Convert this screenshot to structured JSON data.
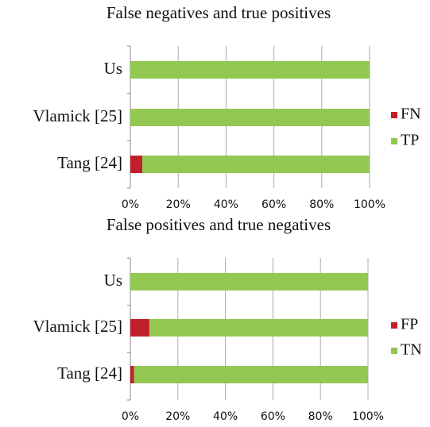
{
  "chart_data": [
    {
      "type": "bar",
      "orientation": "horizontal",
      "stacked": true,
      "grid": true,
      "legend": "right",
      "title": "False negatives and true positives",
      "categories": [
        "Us",
        "Vlamick [25]",
        "Tang [24]"
      ],
      "series": [
        {
          "name": "FN",
          "color": "#c0202a",
          "values": [
            0,
            0,
            5
          ]
        },
        {
          "name": "TP",
          "color": "#92c852",
          "values": [
            100,
            100,
            95
          ]
        }
      ],
      "xlim": [
        0,
        100
      ],
      "xticks": [
        {
          "value": 0,
          "label": "0%"
        },
        {
          "value": 20,
          "label": "20%"
        },
        {
          "value": 40,
          "label": "40%"
        },
        {
          "value": 60,
          "label": "60%"
        },
        {
          "value": 80,
          "label": "80%"
        },
        {
          "value": 100,
          "label": "100%"
        }
      ]
    },
    {
      "type": "bar",
      "orientation": "horizontal",
      "stacked": true,
      "grid": true,
      "legend": "right",
      "title": "False positives and true negatives",
      "categories": [
        "Us",
        "Vlamick [25]",
        "Tang [24]"
      ],
      "series": [
        {
          "name": "FP",
          "color": "#c0202a",
          "values": [
            0,
            8,
            1.5
          ]
        },
        {
          "name": "TN",
          "color": "#92c852",
          "values": [
            100,
            92,
            98.5
          ]
        }
      ],
      "xlim": [
        0,
        100
      ],
      "xticks": [
        {
          "value": 0,
          "label": "0%"
        },
        {
          "value": 20,
          "label": "20%"
        },
        {
          "value": 40,
          "label": "40%"
        },
        {
          "value": 60,
          "label": "60%"
        },
        {
          "value": 80,
          "label": "80%"
        },
        {
          "value": 100,
          "label": "100%"
        }
      ]
    }
  ]
}
